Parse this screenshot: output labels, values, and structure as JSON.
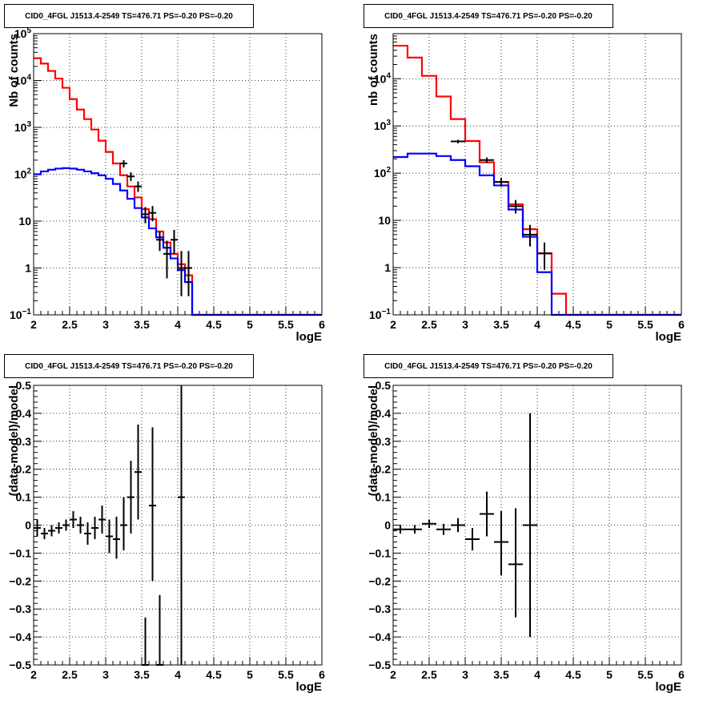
{
  "chart_data": [
    {
      "type": "line",
      "title": "CID0_4FGL J1513.4-2549 TS=476.71 PS=-0.20 PS=-0.20",
      "xlabel": "logE",
      "ylabel": "Nb of counts",
      "xlim": [
        2,
        6
      ],
      "ylim": [
        0.1,
        100000
      ],
      "ylog": true,
      "grid": true,
      "x_ticks": [
        "2",
        "2.5",
        "3",
        "3.5",
        "4",
        "4.5",
        "5",
        "5.5",
        "6"
      ],
      "y_ticks": [
        "10",
        "1",
        "10",
        "10²",
        "10³",
        "10⁴",
        "10⁵"
      ],
      "y_tick_labels": [
        {
          "v": 0.1,
          "main": "10",
          "sup": "−1"
        },
        {
          "v": 1,
          "main": "1",
          "sup": ""
        },
        {
          "v": 10,
          "main": "10",
          "sup": ""
        },
        {
          "v": 100,
          "main": "10",
          "sup": "2"
        },
        {
          "v": 1000,
          "main": "10",
          "sup": "3"
        },
        {
          "v": 10000,
          "main": "10",
          "sup": "4"
        },
        {
          "v": 100000,
          "main": "10",
          "sup": "5"
        }
      ],
      "bin_edges": [
        2.0,
        2.1,
        2.2,
        2.3,
        2.4,
        2.5,
        2.6,
        2.7,
        2.8,
        2.9,
        3.0,
        3.1,
        3.2,
        3.3,
        3.4,
        3.5,
        3.6,
        3.7,
        3.8,
        3.9,
        4.0,
        4.1,
        4.2,
        4.3,
        4.4,
        4.5,
        4.6,
        4.7,
        4.8,
        4.9,
        5.0,
        5.1,
        5.2,
        5.3,
        5.4,
        5.5,
        5.6,
        5.7,
        5.8,
        5.9,
        6.0
      ],
      "series": [
        {
          "color": "#ff0000",
          "kind": "step",
          "values": [
            30000,
            23000,
            16000,
            11000,
            7000,
            4000,
            2400,
            1500,
            900,
            520,
            300,
            170,
            95,
            55,
            32,
            18,
            11,
            6,
            3.5,
            2,
            1.2,
            0.7,
            0.1,
            0.1,
            0.1,
            0.1,
            0.1,
            0.1,
            0.1,
            0.1,
            0.1,
            0.1,
            0.1,
            0.1,
            0.1,
            0.1,
            0.1,
            0.1,
            0.1,
            0.1
          ]
        },
        {
          "color": "#0000ff",
          "kind": "step",
          "values": [
            100,
            115,
            125,
            132,
            135,
            132,
            125,
            115,
            105,
            95,
            80,
            62,
            45,
            30,
            19,
            12,
            7,
            4.5,
            2.7,
            1.6,
            0.9,
            0.5,
            0.1,
            0.1,
            0.1,
            0.1,
            0.1,
            0.1,
            0.1,
            0.1,
            0.1,
            0.1,
            0.1,
            0.1,
            0.1,
            0.1,
            0.1,
            0.1,
            0.1,
            0.1
          ]
        },
        {
          "color": "#000000",
          "kind": "points",
          "points": [
            {
              "x": 3.25,
              "y": 170,
              "lo": 140,
              "hi": 200
            },
            {
              "x": 3.35,
              "y": 90,
              "lo": 72,
              "hi": 110
            },
            {
              "x": 3.45,
              "y": 55,
              "lo": 42,
              "hi": 70
            },
            {
              "x": 3.55,
              "y": 14,
              "lo": 9,
              "hi": 20
            },
            {
              "x": 3.65,
              "y": 15,
              "lo": 10,
              "hi": 21
            },
            {
              "x": 3.75,
              "y": 4,
              "lo": 2.3,
              "hi": 6
            },
            {
              "x": 3.85,
              "y": 2,
              "lo": 0.6,
              "hi": 3.8
            },
            {
              "x": 3.95,
              "y": 4,
              "lo": 2,
              "hi": 6.5
            },
            {
              "x": 4.05,
              "y": 1,
              "lo": 0.25,
              "hi": 2.3
            },
            {
              "x": 4.15,
              "y": 1,
              "lo": 0.25,
              "hi": 2.3
            }
          ]
        }
      ]
    },
    {
      "type": "line",
      "title": "CID0_4FGL J1513.4-2549 TS=476.71 PS=-0.20 PS=-0.20",
      "xlabel": "logE",
      "ylabel": "nb of counts",
      "xlim": [
        2,
        6
      ],
      "ylim": [
        0.1,
        90000
      ],
      "ylog": true,
      "grid": true,
      "x_ticks": [
        "2",
        "2.5",
        "3",
        "3.5",
        "4",
        "4.5",
        "5",
        "5.5",
        "6"
      ],
      "y_tick_labels": [
        {
          "v": 0.1,
          "main": "10",
          "sup": "−1"
        },
        {
          "v": 1,
          "main": "1",
          "sup": ""
        },
        {
          "v": 10,
          "main": "10",
          "sup": ""
        },
        {
          "v": 100,
          "main": "10",
          "sup": "2"
        },
        {
          "v": 1000,
          "main": "10",
          "sup": "3"
        },
        {
          "v": 10000,
          "main": "10",
          "sup": "4"
        }
      ],
      "bin_edges": [
        2.0,
        2.2,
        2.4,
        2.6,
        2.8,
        3.0,
        3.2,
        3.4,
        3.6,
        3.8,
        4.0,
        4.2,
        4.4,
        4.6,
        4.8,
        5.0,
        5.2,
        5.4,
        5.6,
        5.8,
        6.0
      ],
      "series": [
        {
          "color": "#ff0000",
          "kind": "step",
          "values": [
            50000,
            28000,
            11500,
            4200,
            1400,
            480,
            170,
            65,
            22,
            6.5,
            2.0,
            0.28,
            0.1,
            0.1,
            0.1,
            0.1,
            0.1,
            0.1,
            0.1,
            0.1
          ]
        },
        {
          "color": "#0000ff",
          "kind": "step",
          "values": [
            220,
            260,
            260,
            230,
            190,
            140,
            90,
            55,
            17,
            4.5,
            0.8,
            0.1,
            0.1,
            0.1,
            0.1,
            0.1,
            0.1,
            0.1,
            0.1,
            0.1
          ]
        },
        {
          "color": "#000000",
          "kind": "points",
          "points": [
            {
              "x": 2.9,
              "y": 470,
              "lo": 430,
              "hi": 510
            },
            {
              "x": 3.3,
              "y": 190,
              "lo": 165,
              "hi": 215
            },
            {
              "x": 3.5,
              "y": 65,
              "lo": 52,
              "hi": 80
            },
            {
              "x": 3.7,
              "y": 20,
              "lo": 14,
              "hi": 27
            },
            {
              "x": 3.9,
              "y": 5,
              "lo": 2.8,
              "hi": 8
            },
            {
              "x": 4.1,
              "y": 2,
              "lo": 0.9,
              "hi": 3.4
            }
          ]
        }
      ]
    },
    {
      "type": "scatter",
      "title": "CID0_4FGL J1513.4-2549 TS=476.71 PS=-0.20 PS=-0.20",
      "xlabel": "logE",
      "ylabel": "(data-model)/model",
      "xlim": [
        2,
        6
      ],
      "ylim": [
        -0.5,
        0.5
      ],
      "ylog": false,
      "grid": true,
      "x_ticks": [
        "2",
        "2.5",
        "3",
        "3.5",
        "4",
        "4.5",
        "5",
        "5.5",
        "6"
      ],
      "y_ticks": [
        "−0.5",
        "−0.4",
        "−0.3",
        "−0.2",
        "−0.1",
        "0",
        "0.1",
        "0.2",
        "0.3",
        "0.4",
        "0.5"
      ],
      "series": [
        {
          "color": "#000000",
          "kind": "points",
          "points": [
            {
              "x": 2.05,
              "y": -0.01,
              "lo": -0.04,
              "hi": 0.02,
              "hw": 0.05
            },
            {
              "x": 2.15,
              "y": -0.03,
              "lo": -0.05,
              "hi": -0.01,
              "hw": 0.05
            },
            {
              "x": 2.25,
              "y": -0.02,
              "lo": -0.04,
              "hi": 0.0,
              "hw": 0.05
            },
            {
              "x": 2.35,
              "y": -0.01,
              "lo": -0.03,
              "hi": 0.01,
              "hw": 0.05
            },
            {
              "x": 2.45,
              "y": 0.0,
              "lo": -0.02,
              "hi": 0.02,
              "hw": 0.05
            },
            {
              "x": 2.55,
              "y": 0.02,
              "lo": -0.01,
              "hi": 0.05,
              "hw": 0.05
            },
            {
              "x": 2.65,
              "y": 0.0,
              "lo": -0.03,
              "hi": 0.03,
              "hw": 0.05
            },
            {
              "x": 2.75,
              "y": -0.03,
              "lo": -0.07,
              "hi": 0.01,
              "hw": 0.05
            },
            {
              "x": 2.85,
              "y": -0.01,
              "lo": -0.05,
              "hi": 0.03,
              "hw": 0.05
            },
            {
              "x": 2.95,
              "y": 0.02,
              "lo": -0.03,
              "hi": 0.07,
              "hw": 0.05
            },
            {
              "x": 3.05,
              "y": -0.04,
              "lo": -0.1,
              "hi": 0.02,
              "hw": 0.05
            },
            {
              "x": 3.15,
              "y": -0.05,
              "lo": -0.12,
              "hi": 0.03,
              "hw": 0.05
            },
            {
              "x": 3.25,
              "y": 0.0,
              "lo": -0.09,
              "hi": 0.1,
              "hw": 0.05
            },
            {
              "x": 3.35,
              "y": 0.1,
              "lo": -0.03,
              "hi": 0.23,
              "hw": 0.05
            },
            {
              "x": 3.45,
              "y": 0.19,
              "lo": 0.02,
              "hi": 0.36,
              "hw": 0.05
            },
            {
              "x": 3.55,
              "y": -0.5,
              "lo": -0.5,
              "hi": -0.33,
              "hw": 0.05
            },
            {
              "x": 3.65,
              "y": 0.07,
              "lo": -0.2,
              "hi": 0.35,
              "hw": 0.05
            },
            {
              "x": 3.75,
              "y": -0.5,
              "lo": -0.5,
              "hi": -0.25,
              "hw": 0.05
            },
            {
              "x": 4.05,
              "y": 0.1,
              "lo": -0.5,
              "hi": 0.5,
              "hw": 0.05
            }
          ]
        }
      ]
    },
    {
      "type": "scatter",
      "title": "CID0_4FGL J1513.4-2549 TS=476.71 PS=-0.20 PS=-0.20",
      "xlabel": "logE",
      "ylabel": "(data-model)/model",
      "xlim": [
        2,
        6
      ],
      "ylim": [
        -0.5,
        0.5
      ],
      "ylog": false,
      "grid": true,
      "x_ticks": [
        "2",
        "2.5",
        "3",
        "3.5",
        "4",
        "4.5",
        "5",
        "5.5",
        "6"
      ],
      "y_ticks": [
        "−0.5",
        "−0.4",
        "−0.3",
        "−0.2",
        "−0.1",
        "0",
        "0.1",
        "0.2",
        "0.3",
        "0.4",
        "0.5"
      ],
      "series": [
        {
          "color": "#000000",
          "kind": "points",
          "points": [
            {
              "x": 2.1,
              "y": -0.015,
              "lo": -0.03,
              "hi": 0.0,
              "hw": 0.1
            },
            {
              "x": 2.3,
              "y": -0.015,
              "lo": -0.03,
              "hi": 0.0,
              "hw": 0.1
            },
            {
              "x": 2.5,
              "y": 0.005,
              "lo": -0.01,
              "hi": 0.02,
              "hw": 0.1
            },
            {
              "x": 2.7,
              "y": -0.015,
              "lo": -0.035,
              "hi": 0.005,
              "hw": 0.1
            },
            {
              "x": 2.9,
              "y": 0.0,
              "lo": -0.025,
              "hi": 0.025,
              "hw": 0.1
            },
            {
              "x": 3.1,
              "y": -0.05,
              "lo": -0.09,
              "hi": -0.01,
              "hw": 0.1
            },
            {
              "x": 3.3,
              "y": 0.04,
              "lo": -0.04,
              "hi": 0.12,
              "hw": 0.1
            },
            {
              "x": 3.5,
              "y": -0.06,
              "lo": -0.18,
              "hi": 0.05,
              "hw": 0.1
            },
            {
              "x": 3.7,
              "y": -0.14,
              "lo": -0.33,
              "hi": 0.06,
              "hw": 0.1
            },
            {
              "x": 3.9,
              "y": 0.0,
              "lo": -0.4,
              "hi": 0.4,
              "hw": 0.1
            }
          ]
        }
      ]
    }
  ]
}
